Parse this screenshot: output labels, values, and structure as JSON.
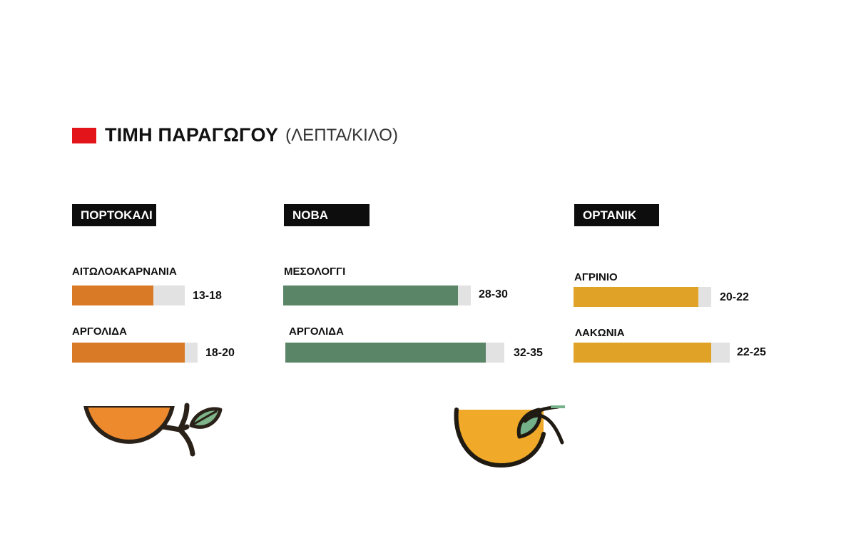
{
  "title": {
    "main": "ΤΙΜΗ ΠΑΡΑΓΩΓΟΥ",
    "sub": "(ΛΕΠΤΑ/ΚΙΛΟ)",
    "swatch_color": "#e3151a"
  },
  "chart_data": {
    "type": "bar",
    "orientation": "horizontal",
    "units": "λεπτά/κιλό",
    "groups": [
      {
        "name": "ΠΟΡΤΟΚΑΛΙ",
        "color": "#d97a26",
        "items": [
          {
            "region": "ΑΙΤΩΛΟΑΚΑΡΝΑΝΙΑ",
            "label": "13-18",
            "min": 13,
            "max": 18
          },
          {
            "region": "ΑΡΓΟΛΙΔΑ",
            "label": "18-20",
            "min": 18,
            "max": 20
          }
        ]
      },
      {
        "name": "ΝΟΒΑ",
        "color": "#5b8567",
        "items": [
          {
            "region": "ΜΕΣΟΛΟΓΓΙ",
            "label": "28-30",
            "min": 28,
            "max": 30
          },
          {
            "region": "ΑΡΓΟΛΙΔΑ",
            "label": "32-35",
            "min": 32,
            "max": 35
          }
        ]
      },
      {
        "name": "ΟΡΤΑΝΙΚ",
        "color": "#e0a327",
        "items": [
          {
            "region": "ΑΓΡΙΝΙΟ",
            "label": "20-22",
            "min": 20,
            "max": 22
          },
          {
            "region": "ΛΑΚΩΝΙΑ",
            "label": "22-25",
            "min": 22,
            "max": 25
          }
        ]
      }
    ]
  },
  "illustrations": [
    {
      "icon": "orange-with-leaf-icon",
      "fill": "#ee8a2e",
      "leaf": "#7fb58a"
    },
    {
      "icon": "orange-with-leaf-icon",
      "fill": "#f0a928",
      "leaf": "#74b08a"
    }
  ]
}
